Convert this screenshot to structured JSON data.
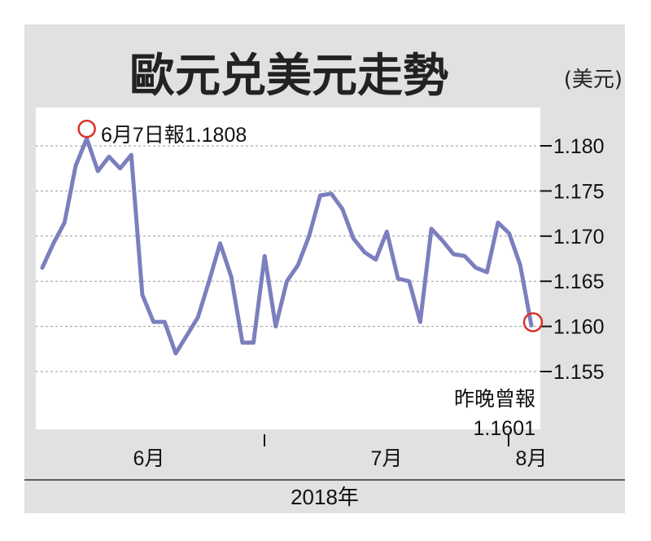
{
  "chart_data": {
    "type": "line",
    "title": "歐元兑美元走勢",
    "unit": "(美元)",
    "xlabel": "2018年",
    "x_ticks": [
      "6月",
      "7月",
      "8月"
    ],
    "y_ticks": [
      "1.180",
      "1.175",
      "1.170",
      "1.165",
      "1.160",
      "1.155"
    ],
    "ylim": [
      1.155,
      1.181
    ],
    "series": [
      {
        "values": [
          1.1665,
          1.1692,
          1.1715,
          1.1778,
          1.1808,
          1.1772,
          1.1788,
          1.1775,
          1.179,
          1.1635,
          1.1605,
          1.1605,
          1.157,
          1.159,
          1.161,
          1.165,
          1.1692,
          1.1655,
          1.1582,
          1.1582,
          1.1678,
          1.16,
          1.165,
          1.1668,
          1.17,
          1.1745,
          1.1747,
          1.173,
          1.1697,
          1.1682,
          1.1674,
          1.1705,
          1.1653,
          1.165,
          1.1605,
          1.1708,
          1.1695,
          1.168,
          1.1678,
          1.1665,
          1.166,
          1.1715,
          1.1703,
          1.1668,
          1.1601
        ],
        "color": "#7b7fbe"
      }
    ],
    "annotations": {
      "high_label": "6月7日報1.1808",
      "low_label_line1": "昨晚曾報",
      "low_label_line2": "1.1601"
    },
    "colors": {
      "background": "#e1e1e1",
      "plot_background": "#ffffff",
      "line": "#7b7fbe",
      "marker": "#d8322a"
    }
  }
}
